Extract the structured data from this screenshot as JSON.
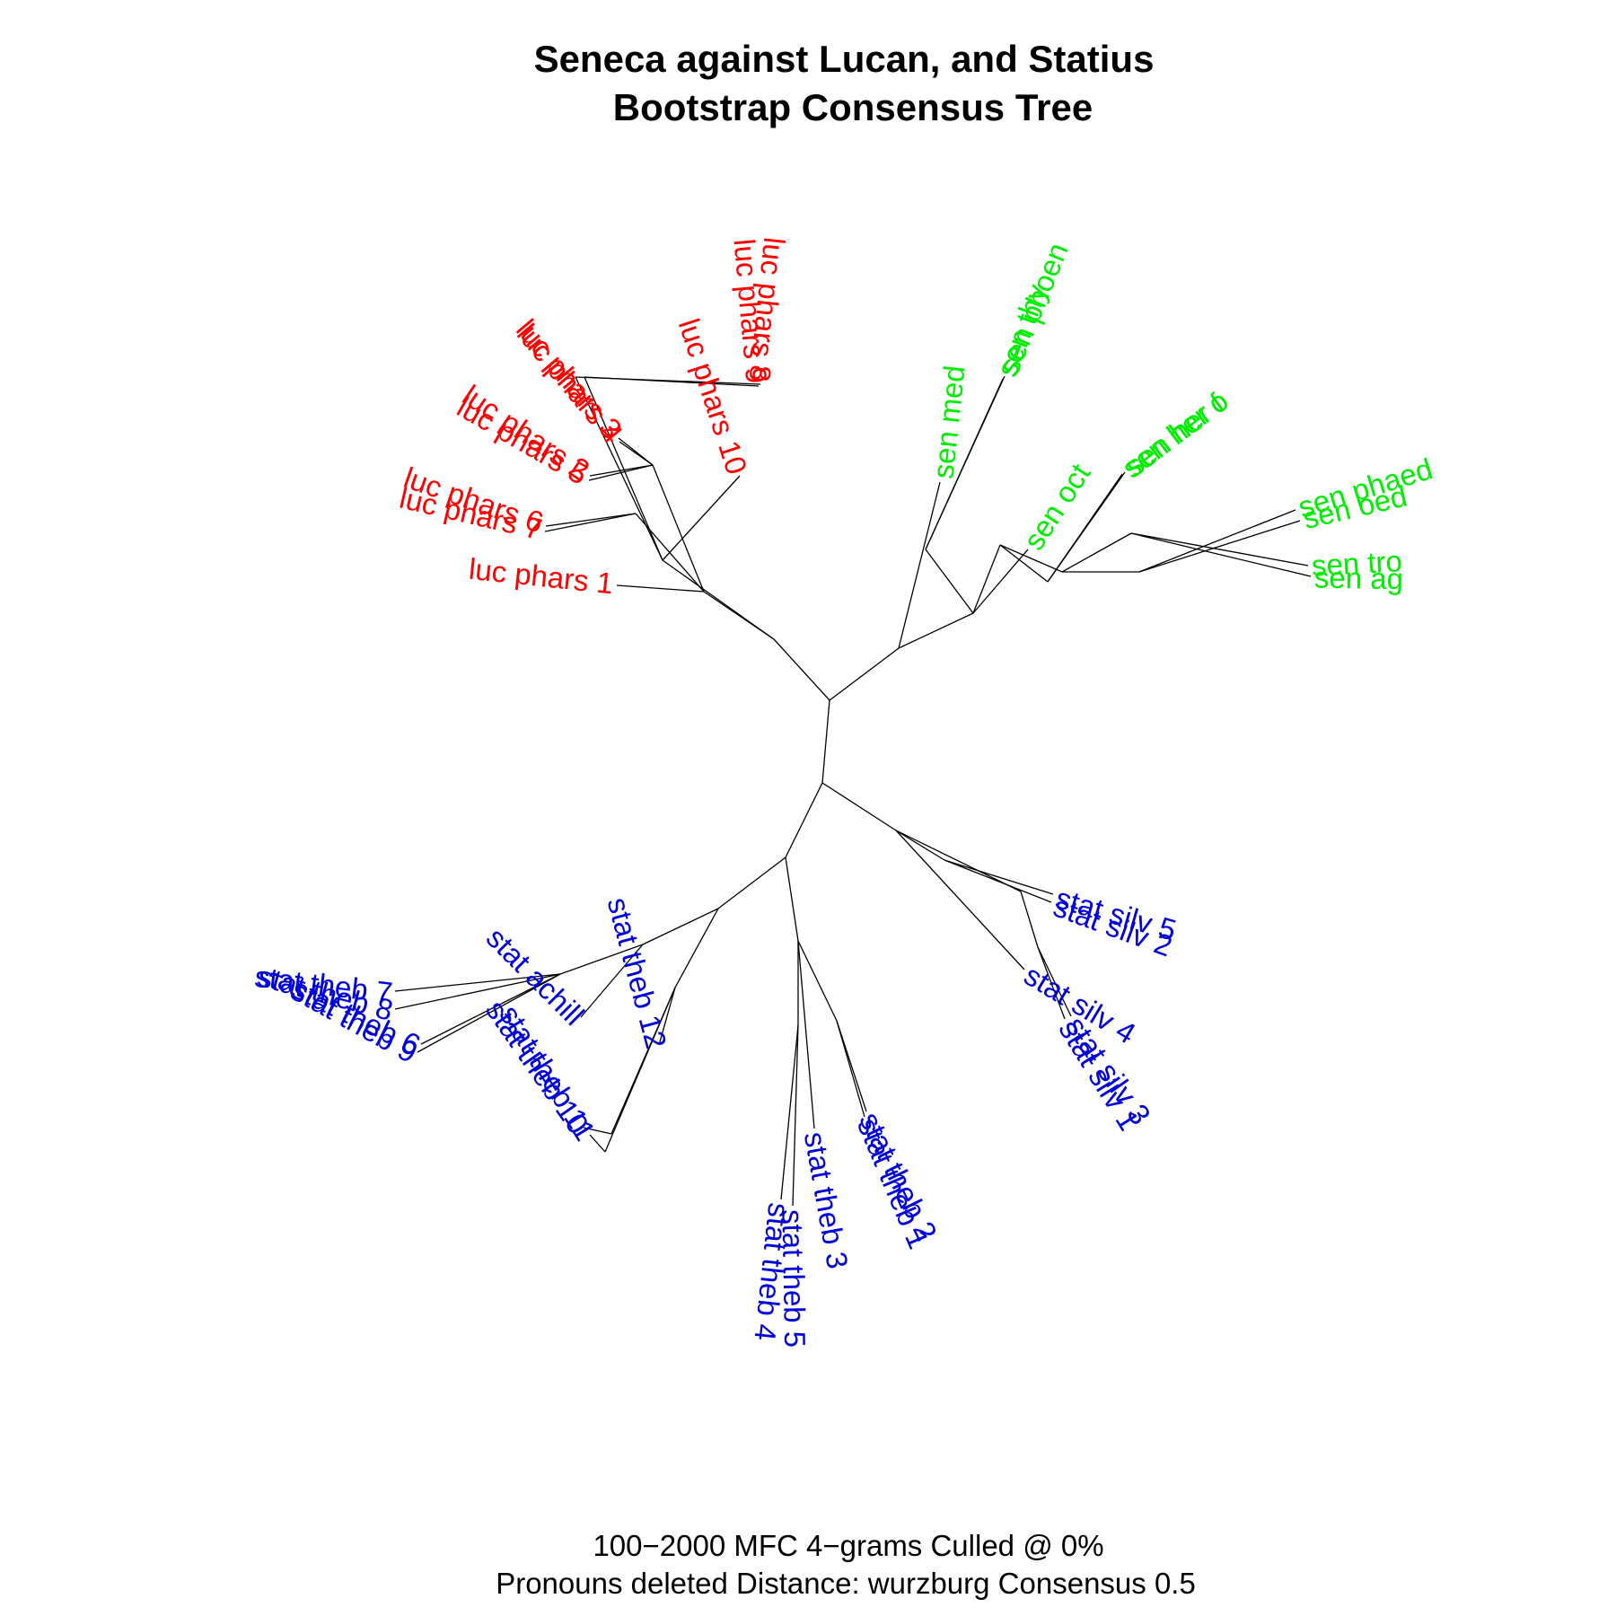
{
  "title": {
    "line1": "Seneca against Lucan, and Statius",
    "line2": "Bootstrap Consensus Tree"
  },
  "caption": {
    "line1": "100−2000 MFC 4−grams Culled @ 0%",
    "line2": "Pronouns deleted Distance: wurzburg Consensus 0.5"
  },
  "colors": {
    "lucan": "#ff0000",
    "seneca": "#00ee00",
    "statius": "#0000dd",
    "branch": "#000000"
  },
  "tree": {
    "tips": [
      {
        "label": "luc phars 1",
        "group": "lucan"
      },
      {
        "label": "luc phars 7",
        "group": "lucan"
      },
      {
        "label": "luc phars 6",
        "group": "lucan"
      },
      {
        "label": "luc phars 5",
        "group": "lucan"
      },
      {
        "label": "luc phars 2",
        "group": "lucan"
      },
      {
        "label": "luc phars 4",
        "group": "lucan"
      },
      {
        "label": "luc phars 3",
        "group": "lucan"
      },
      {
        "label": "luc phars 10",
        "group": "lucan"
      },
      {
        "label": "luc phars 9",
        "group": "lucan"
      },
      {
        "label": "luc phars 8",
        "group": "lucan"
      },
      {
        "label": "sen med",
        "group": "seneca"
      },
      {
        "label": "sen thy",
        "group": "seneca"
      },
      {
        "label": "sen phoen",
        "group": "seneca"
      },
      {
        "label": "sen oct",
        "group": "seneca"
      },
      {
        "label": "sen her o",
        "group": "seneca"
      },
      {
        "label": "sen her f",
        "group": "seneca"
      },
      {
        "label": "sen phaed",
        "group": "seneca"
      },
      {
        "label": "sen oed",
        "group": "seneca"
      },
      {
        "label": "sen tro",
        "group": "seneca"
      },
      {
        "label": "sen ag",
        "group": "seneca"
      },
      {
        "label": "stat silv 5",
        "group": "statius"
      },
      {
        "label": "stat silv 2",
        "group": "statius"
      },
      {
        "label": "stat silv 4",
        "group": "statius"
      },
      {
        "label": "stat silv 3",
        "group": "statius"
      },
      {
        "label": "stat silv 1",
        "group": "statius"
      },
      {
        "label": "stat theb 2",
        "group": "statius"
      },
      {
        "label": "stat theb 1",
        "group": "statius"
      },
      {
        "label": "stat theb 3",
        "group": "statius"
      },
      {
        "label": "stat theb 5",
        "group": "statius"
      },
      {
        "label": "stat theb 4",
        "group": "statius"
      },
      {
        "label": "stat theb 12",
        "group": "statius"
      },
      {
        "label": "stat theb 11",
        "group": "statius"
      },
      {
        "label": "stat theb 10",
        "group": "statius"
      },
      {
        "label": "stat achill",
        "group": "statius"
      },
      {
        "label": "stat theb 9",
        "group": "statius"
      },
      {
        "label": "stat theb 6",
        "group": "statius"
      },
      {
        "label": "stat theb 8",
        "group": "statius"
      },
      {
        "label": "stat theb 7",
        "group": "statius"
      }
    ]
  }
}
